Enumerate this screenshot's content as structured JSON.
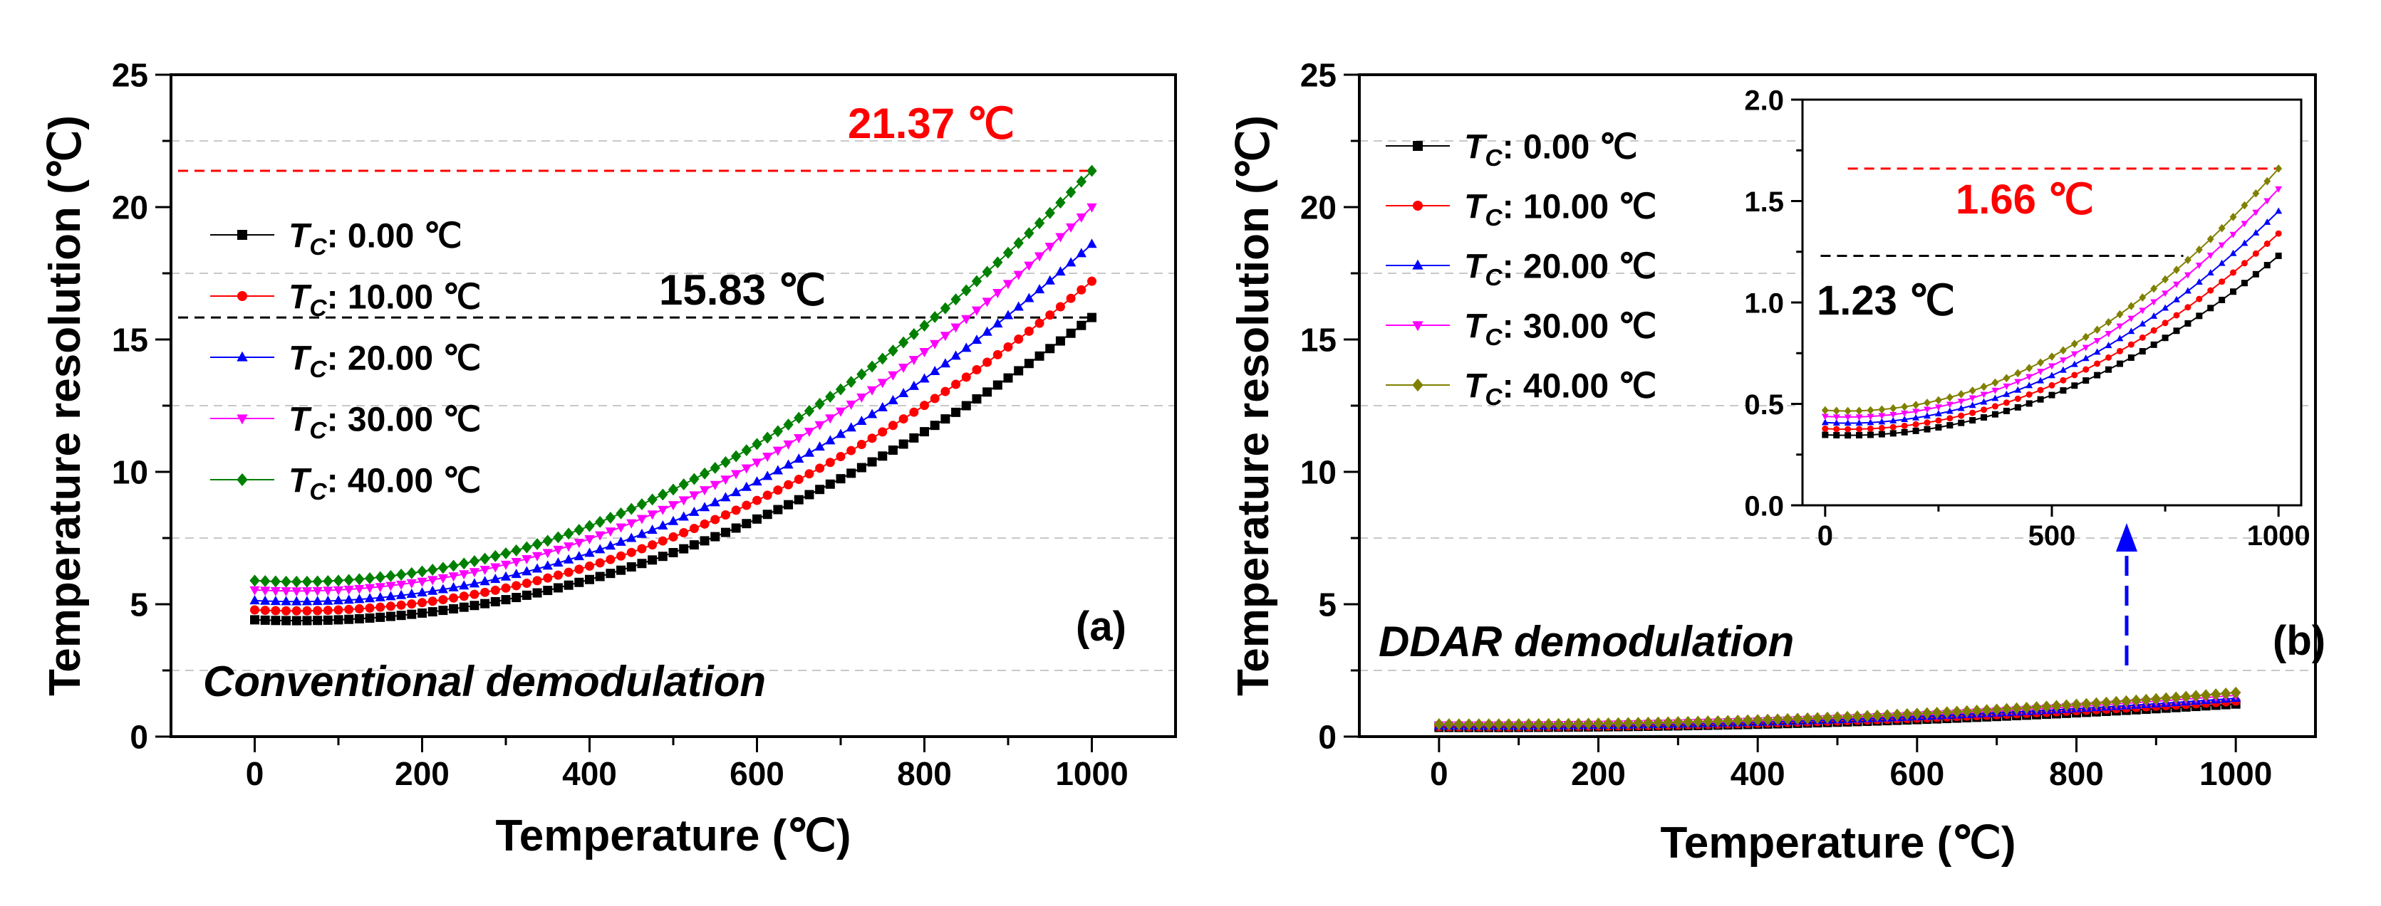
{
  "chart_data": [
    {
      "type": "scatter",
      "panel_label": "(a)",
      "annotation": "Conventional demodulation",
      "xlabel": "Temperature (℃)",
      "ylabel": "Temperature resolution (℃)",
      "xlim": [
        -100,
        1100
      ],
      "ylim": [
        0,
        25
      ],
      "xticks": [
        "0",
        "200",
        "400",
        "600",
        "800",
        "1000"
      ],
      "yticks": [
        "0",
        "5",
        "10",
        "15",
        "20",
        "25"
      ],
      "grid_y": [
        2.5,
        7.5,
        12.5,
        17.5,
        22.5
      ],
      "series": [
        {
          "prefix": "T",
          "sub": "C",
          "name": ": 0.00 ℃",
          "color": "#000000",
          "marker": "square",
          "min": 4.38,
          "xmin": 50,
          "end": 15.83
        },
        {
          "prefix": "T",
          "sub": "C",
          "name": ": 10.00 ℃",
          "color": "#ff0000",
          "marker": "circle",
          "min": 4.75,
          "xmin": 50,
          "end": 17.2
        },
        {
          "prefix": "T",
          "sub": "C",
          "name": ": 20.00 ℃",
          "color": "#0000ff",
          "marker": "triangle-up",
          "min": 5.1,
          "xmin": 50,
          "end": 18.6
        },
        {
          "prefix": "T",
          "sub": "C",
          "name": ": 30.00 ℃",
          "color": "#ff00ff",
          "marker": "triangle-down",
          "min": 5.5,
          "xmin": 50,
          "end": 20.0
        },
        {
          "prefix": "T",
          "sub": "C",
          "name": ": 40.00 ℃",
          "color": "#008000",
          "marker": "diamond",
          "min": 5.85,
          "xmin": 50,
          "end": 21.37
        }
      ],
      "reference_lines": [
        {
          "value": 21.37,
          "label": "21.37 ℃",
          "color": "#ff0000"
        },
        {
          "value": 15.83,
          "label": "15.83 ℃",
          "color": "#000000"
        }
      ]
    },
    {
      "type": "scatter",
      "panel_label": "(b)",
      "annotation": "DDAR demodulation",
      "xlabel": "Temperature (℃)",
      "ylabel": "Temperature resolution (℃)",
      "xlim": [
        -100,
        1100
      ],
      "ylim": [
        0,
        25
      ],
      "xticks": [
        "0",
        "200",
        "400",
        "600",
        "800",
        "1000"
      ],
      "yticks": [
        "0",
        "5",
        "10",
        "15",
        "20",
        "25"
      ],
      "grid_y": [
        2.5,
        7.5,
        12.5,
        17.5,
        22.5
      ],
      "series": [
        {
          "prefix": "T",
          "sub": "C",
          "name": ": 0.00 ℃",
          "color": "#000000",
          "marker": "square",
          "min": 0.345,
          "xmin": 50,
          "end": 1.23
        },
        {
          "prefix": "T",
          "sub": "C",
          "name": ": 10.00 ℃",
          "color": "#ff0000",
          "marker": "circle",
          "min": 0.375,
          "xmin": 50,
          "end": 1.34
        },
        {
          "prefix": "T",
          "sub": "C",
          "name": ": 20.00 ℃",
          "color": "#0000ff",
          "marker": "triangle-up",
          "min": 0.405,
          "xmin": 50,
          "end": 1.45
        },
        {
          "prefix": "T",
          "sub": "C",
          "name": ": 30.00 ℃",
          "color": "#ff00ff",
          "marker": "triangle-down",
          "min": 0.435,
          "xmin": 50,
          "end": 1.56
        },
        {
          "prefix": "T",
          "sub": "C",
          "name": ": 40.00 ℃",
          "color": "#808000",
          "marker": "diamond",
          "min": 0.465,
          "xmin": 50,
          "end": 1.66
        }
      ],
      "inset": {
        "xlim": [
          -50,
          1050
        ],
        "ylim": [
          0,
          2.0
        ],
        "xticks": [
          "0",
          "500",
          "1000"
        ],
        "yticks": [
          "0.0",
          "0.5",
          "1.0",
          "1.5",
          "2.0"
        ],
        "reference_lines": [
          {
            "value": 1.66,
            "label": "1.66 ℃",
            "color": "#ff0000"
          },
          {
            "value": 1.23,
            "label": "1.23 ℃",
            "color": "#000000"
          }
        ]
      }
    }
  ]
}
